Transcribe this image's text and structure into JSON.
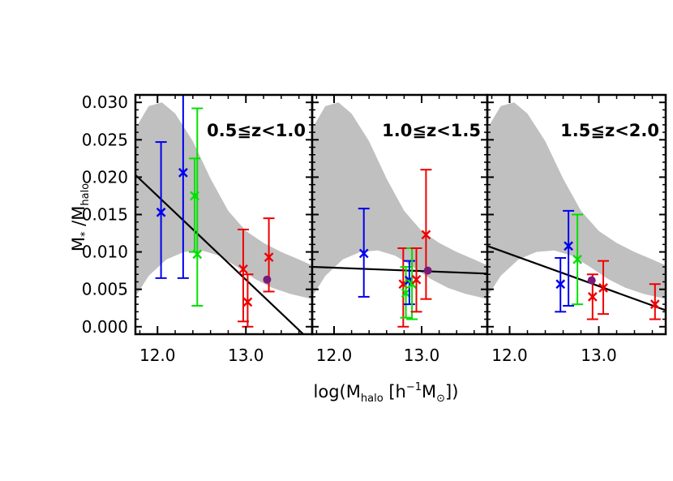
{
  "chart_data": {
    "type": "scatter",
    "xlabel": {
      "prefix": "log(M",
      "sub": "halo",
      "mid": " [h",
      "sup": "−1",
      "mid2": "M",
      "sub2": "⊙",
      "suffix": "])"
    },
    "ylabel": {
      "main": "M",
      "sub1": "*",
      "mid": " /M",
      "sub2": "halo"
    },
    "xlim": [
      11.75,
      13.75
    ],
    "ylim": [
      -0.001,
      0.031
    ],
    "x_ticks": [
      12.0,
      13.0
    ],
    "x_tick_labels": [
      "12.0",
      "13.0"
    ],
    "y_ticks": [
      0.0,
      0.005,
      0.01,
      0.015,
      0.02,
      0.025,
      0.03
    ],
    "y_tick_labels": [
      "0.000",
      "0.005",
      "0.010",
      "0.015",
      "0.020",
      "0.025",
      "0.030"
    ],
    "colors": {
      "blue": "#0000ee",
      "green": "#00e000",
      "red": "#ee0000",
      "purple": "#7a1a7a",
      "band": "#c0c0c0",
      "line": "#000000"
    },
    "panels": [
      {
        "title": "0.5≦z<1.0",
        "band_upper": [
          [
            11.75,
            0.0265
          ],
          [
            11.9,
            0.0295
          ],
          [
            12.05,
            0.03
          ],
          [
            12.2,
            0.0285
          ],
          [
            12.4,
            0.0248
          ],
          [
            12.6,
            0.0198
          ],
          [
            12.8,
            0.0155
          ],
          [
            13.0,
            0.0128
          ],
          [
            13.2,
            0.0112
          ],
          [
            13.4,
            0.01
          ],
          [
            13.6,
            0.009
          ],
          [
            13.75,
            0.0082
          ]
        ],
        "band_lower": [
          [
            11.75,
            0.004
          ],
          [
            11.9,
            0.0068
          ],
          [
            12.1,
            0.009
          ],
          [
            12.3,
            0.01
          ],
          [
            12.5,
            0.0102
          ],
          [
            12.7,
            0.0095
          ],
          [
            12.9,
            0.008
          ],
          [
            13.1,
            0.0064
          ],
          [
            13.3,
            0.0052
          ],
          [
            13.5,
            0.0044
          ],
          [
            13.75,
            0.0037
          ]
        ],
        "fit_line": [
          [
            11.75,
            0.0203
          ],
          [
            13.65,
            -0.001
          ]
        ],
        "points": [
          {
            "x": 12.04,
            "y": 0.0153,
            "lo": 0.0065,
            "hi": 0.0247,
            "color": "blue"
          },
          {
            "x": 12.29,
            "y": 0.0206,
            "lo": 0.0065,
            "hi": 0.031,
            "color": "blue"
          },
          {
            "x": 12.42,
            "y": 0.0175,
            "lo": 0.01,
            "hi": 0.0225,
            "color": "green"
          },
          {
            "x": 12.45,
            "y": 0.0097,
            "lo": 0.0028,
            "hi": 0.0292,
            "color": "green"
          },
          {
            "x": 12.97,
            "y": 0.0077,
            "lo": 0.0007,
            "hi": 0.013,
            "color": "red"
          },
          {
            "x": 13.02,
            "y": 0.0033,
            "lo": 0.0,
            "hi": 0.007,
            "color": "red"
          },
          {
            "x": 13.26,
            "y": 0.0093,
            "lo": 0.0047,
            "hi": 0.0145,
            "color": "red"
          }
        ],
        "marker": {
          "x": 13.24,
          "y": 0.0063
        }
      },
      {
        "title": "1.0≦z<1.5",
        "band_upper": [
          [
            11.75,
            0.0265
          ],
          [
            11.9,
            0.0295
          ],
          [
            12.05,
            0.03
          ],
          [
            12.2,
            0.0285
          ],
          [
            12.4,
            0.0248
          ],
          [
            12.6,
            0.0198
          ],
          [
            12.8,
            0.0155
          ],
          [
            13.0,
            0.0128
          ],
          [
            13.2,
            0.0112
          ],
          [
            13.4,
            0.01
          ],
          [
            13.6,
            0.009
          ],
          [
            13.75,
            0.0082
          ]
        ],
        "band_lower": [
          [
            11.75,
            0.004
          ],
          [
            11.9,
            0.0068
          ],
          [
            12.1,
            0.009
          ],
          [
            12.3,
            0.01
          ],
          [
            12.5,
            0.0102
          ],
          [
            12.7,
            0.0095
          ],
          [
            12.9,
            0.008
          ],
          [
            13.1,
            0.0064
          ],
          [
            13.3,
            0.0052
          ],
          [
            13.5,
            0.0044
          ],
          [
            13.75,
            0.0037
          ]
        ],
        "fit_line": [
          [
            11.75,
            0.008
          ],
          [
            13.75,
            0.0071
          ]
        ],
        "points": [
          {
            "x": 12.34,
            "y": 0.0098,
            "lo": 0.004,
            "hi": 0.0158,
            "color": "blue"
          },
          {
            "x": 12.79,
            "y": 0.0057,
            "lo": 0.0,
            "hi": 0.0105,
            "color": "red"
          },
          {
            "x": 12.82,
            "y": 0.0045,
            "lo": 0.0012,
            "hi": 0.008,
            "color": "green"
          },
          {
            "x": 12.86,
            "y": 0.0062,
            "lo": 0.003,
            "hi": 0.0088,
            "color": "blue"
          },
          {
            "x": 12.89,
            "y": 0.0057,
            "lo": 0.001,
            "hi": 0.0105,
            "color": "green"
          },
          {
            "x": 12.94,
            "y": 0.0063,
            "lo": 0.002,
            "hi": 0.0105,
            "color": "red"
          },
          {
            "x": 13.05,
            "y": 0.0123,
            "lo": 0.0037,
            "hi": 0.021,
            "color": "red"
          }
        ],
        "marker": {
          "x": 13.07,
          "y": 0.0075
        }
      },
      {
        "title": "1.5≦z<2.0",
        "band_upper": [
          [
            11.75,
            0.0265
          ],
          [
            11.9,
            0.0295
          ],
          [
            12.05,
            0.03
          ],
          [
            12.2,
            0.0285
          ],
          [
            12.4,
            0.0248
          ],
          [
            12.6,
            0.0198
          ],
          [
            12.8,
            0.0155
          ],
          [
            13.0,
            0.0128
          ],
          [
            13.2,
            0.0112
          ],
          [
            13.4,
            0.01
          ],
          [
            13.6,
            0.009
          ],
          [
            13.75,
            0.0082
          ]
        ],
        "band_lower": [
          [
            11.75,
            0.004
          ],
          [
            11.9,
            0.0068
          ],
          [
            12.1,
            0.009
          ],
          [
            12.3,
            0.01
          ],
          [
            12.5,
            0.0102
          ],
          [
            12.7,
            0.0095
          ],
          [
            12.9,
            0.008
          ],
          [
            13.1,
            0.0064
          ],
          [
            13.3,
            0.0052
          ],
          [
            13.5,
            0.0044
          ],
          [
            13.75,
            0.0037
          ]
        ],
        "fit_line": [
          [
            11.75,
            0.0108
          ],
          [
            13.75,
            0.0022
          ]
        ],
        "points": [
          {
            "x": 12.57,
            "y": 0.0057,
            "lo": 0.002,
            "hi": 0.0092,
            "color": "blue"
          },
          {
            "x": 12.66,
            "y": 0.0108,
            "lo": 0.0028,
            "hi": 0.0155,
            "color": "blue"
          },
          {
            "x": 12.76,
            "y": 0.009,
            "lo": 0.003,
            "hi": 0.015,
            "color": "green"
          },
          {
            "x": 12.93,
            "y": 0.004,
            "lo": 0.001,
            "hi": 0.007,
            "color": "red"
          },
          {
            "x": 13.05,
            "y": 0.0052,
            "lo": 0.0017,
            "hi": 0.0088,
            "color": "red"
          },
          {
            "x": 13.63,
            "y": 0.003,
            "lo": 0.001,
            "hi": 0.0057,
            "color": "red"
          }
        ],
        "marker": {
          "x": 12.92,
          "y": 0.0062
        }
      }
    ]
  }
}
